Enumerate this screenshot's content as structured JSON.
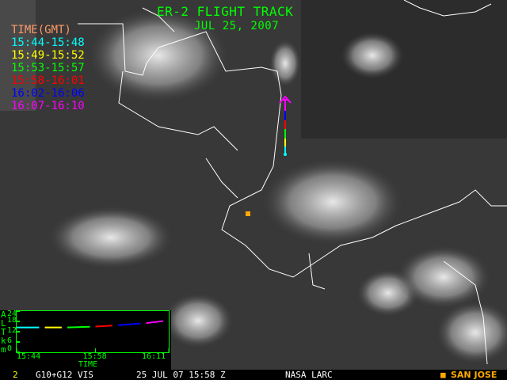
{
  "header": {
    "title": "ER-2 FLIGHT TRACK",
    "date": "JUL 25, 2007"
  },
  "legend": {
    "title": "TIME(GMT)",
    "title_color": "#ff9966",
    "items": [
      {
        "label": "15:44-15:48",
        "color": "#00ffff"
      },
      {
        "label": "15:49-15:52",
        "color": "#ffff00"
      },
      {
        "label": "15:53-15:57",
        "color": "#00ff00"
      },
      {
        "label": "15:58-16:01",
        "color": "#ff0000"
      },
      {
        "label": "16:02-16:06",
        "color": "#0000ff"
      },
      {
        "label": "16:07-16:10",
        "color": "#ff00ff"
      }
    ]
  },
  "chart_data": {
    "type": "line",
    "ylabel": "ALT km",
    "xlabel": "TIME",
    "yticks": [
      "24",
      "18",
      "12",
      "6",
      "0"
    ],
    "ylim": [
      0,
      24
    ],
    "xticks": [
      "15:44",
      "15:58",
      "16:11"
    ],
    "series": [
      {
        "color": "#00ffff",
        "points": [
          [
            "15:44",
            14.5
          ],
          [
            "15:48",
            14.5
          ]
        ]
      },
      {
        "color": "#ffff00",
        "points": [
          [
            "15:49",
            14.5
          ],
          [
            "15:52",
            14.5
          ]
        ]
      },
      {
        "color": "#00ff00",
        "points": [
          [
            "15:53",
            14.5
          ],
          [
            "15:57",
            14.9
          ]
        ]
      },
      {
        "color": "#ff0000",
        "points": [
          [
            "15:58",
            15.0
          ],
          [
            "16:01",
            15.6
          ]
        ]
      },
      {
        "color": "#0000ff",
        "points": [
          [
            "16:02",
            15.8
          ],
          [
            "16:06",
            16.8
          ]
        ]
      },
      {
        "color": "#ff00ff",
        "points": [
          [
            "16:07",
            17.0
          ],
          [
            "16:10",
            18.2
          ]
        ]
      }
    ]
  },
  "footer": {
    "frame": "2",
    "sensor": "G10+G12 VIS",
    "timestamp": "25 JUL 07 15:58 Z",
    "source": "NASA LARC",
    "marker_label": "SAN JOSE",
    "marker_color": "#ffaa00"
  }
}
